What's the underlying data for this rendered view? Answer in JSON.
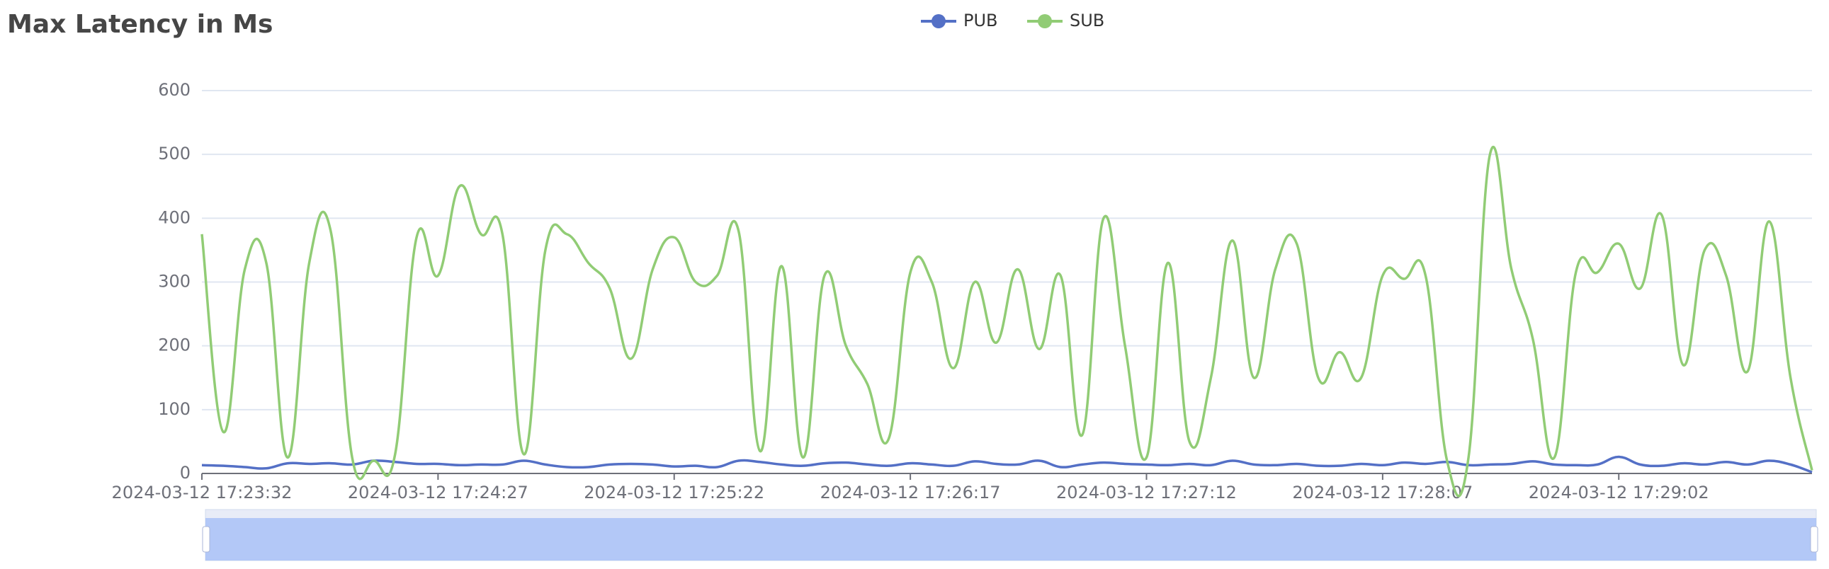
{
  "chart_data": {
    "type": "line",
    "title": "Max Latency in Ms",
    "categories": [
      "2024-03-12 17:23:32",
      null,
      null,
      null,
      null,
      null,
      null,
      null,
      null,
      null,
      null,
      "2024-03-12 17:24:27",
      null,
      null,
      null,
      null,
      null,
      null,
      null,
      null,
      null,
      null,
      "2024-03-12 17:25:22",
      null,
      null,
      null,
      null,
      null,
      null,
      null,
      null,
      null,
      null,
      "2024-03-12 17:26:17",
      null,
      null,
      null,
      null,
      null,
      null,
      null,
      null,
      null,
      null,
      "2024-03-12 17:27:12",
      null,
      null,
      null,
      null,
      null,
      null,
      null,
      null,
      null,
      null,
      "2024-03-12 17:28:07",
      null,
      null,
      null,
      null,
      null,
      null,
      null,
      null,
      null,
      null,
      "2024-03-12 17:29:02",
      null,
      null,
      null,
      null,
      null,
      null,
      null,
      null,
      null
    ],
    "series": [
      {
        "name": "PUB",
        "color": "#5470c6",
        "values": [
          13,
          12,
          10,
          8,
          16,
          15,
          16,
          14,
          20,
          18,
          15,
          15,
          13,
          14,
          14,
          20,
          14,
          10,
          10,
          14,
          15,
          14,
          11,
          12,
          10,
          20,
          18,
          14,
          12,
          16,
          17,
          14,
          12,
          16,
          14,
          12,
          19,
          15,
          14,
          20,
          10,
          14,
          17,
          15,
          14,
          13,
          15,
          13,
          20,
          14,
          13,
          15,
          12,
          12,
          15,
          13,
          17,
          15,
          18,
          13,
          14,
          15,
          19,
          14,
          13,
          14,
          26,
          14,
          12,
          16,
          14,
          18,
          14,
          20,
          14,
          2
        ]
      },
      {
        "name": "SUB",
        "color": "#91cc75",
        "values": [
          375,
          65,
          320,
          330,
          25,
          330,
          380,
          25,
          20,
          30,
          370,
          310,
          450,
          375,
          375,
          30,
          350,
          375,
          330,
          290,
          180,
          320,
          370,
          300,
          310,
          380,
          35,
          325,
          25,
          310,
          200,
          140,
          55,
          315,
          300,
          165,
          300,
          205,
          320,
          195,
          310,
          60,
          400,
          200,
          25,
          330,
          50,
          150,
          365,
          150,
          320,
          360,
          150,
          190,
          150,
          310,
          305,
          310,
          20,
          25,
          500,
          320,
          210,
          25,
          315,
          315,
          360,
          290,
          405,
          170,
          350,
          310,
          160,
          395,
          150,
          5
        ]
      }
    ],
    "ylim": [
      0,
      600
    ],
    "yticks": [
      0,
      100,
      200,
      300,
      400,
      500,
      600
    ],
    "grid": true
  }
}
